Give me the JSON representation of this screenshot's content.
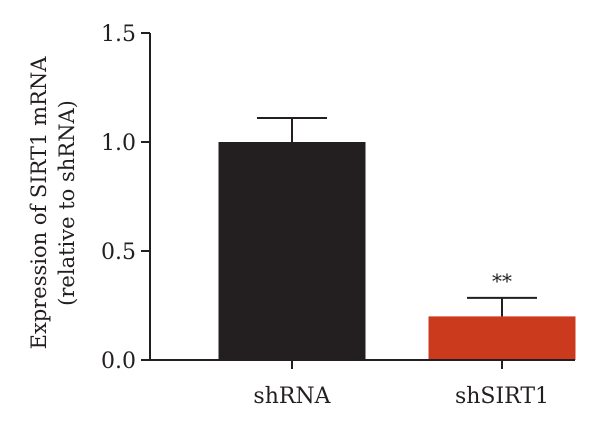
{
  "chart_data": {
    "type": "bar",
    "categories": [
      "shRNA",
      "shSIRT1"
    ],
    "values": [
      1.0,
      0.2
    ],
    "errors": [
      0.11,
      0.085
    ],
    "colors": [
      "#231f20",
      "#cc3a1e"
    ],
    "ylim": [
      0,
      1.5
    ],
    "yticks": [
      "0.0",
      "0.5",
      "1.0",
      "1.5"
    ],
    "ylabel": [
      "Expression of SIRT1 mRNA",
      "(relative to shRNA)"
    ],
    "annotations": [
      "",
      "**"
    ],
    "grid": false,
    "legend": "none"
  }
}
